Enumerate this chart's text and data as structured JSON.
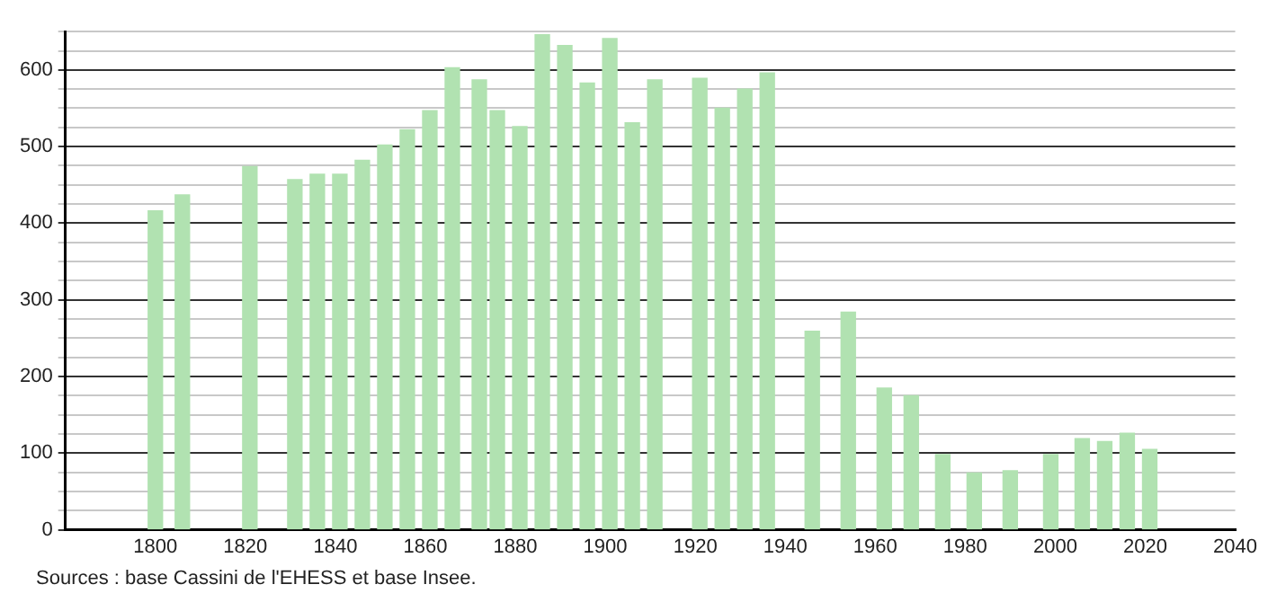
{
  "chart_data": {
    "type": "bar",
    "x": [
      1800,
      1806,
      1821,
      1831,
      1836,
      1841,
      1846,
      1851,
      1856,
      1861,
      1866,
      1872,
      1876,
      1881,
      1886,
      1891,
      1896,
      1901,
      1906,
      1911,
      1921,
      1926,
      1931,
      1936,
      1946,
      1954,
      1962,
      1968,
      1975,
      1982,
      1990,
      1999,
      2006,
      2011,
      2016,
      2021
    ],
    "values": [
      416,
      437,
      474,
      457,
      464,
      464,
      482,
      502,
      522,
      547,
      603,
      587,
      547,
      526,
      646,
      632,
      583,
      641,
      531,
      587,
      589,
      550,
      575,
      596,
      259,
      284,
      185,
      175,
      98,
      74,
      77,
      98,
      119,
      115,
      126,
      105
    ],
    "color": "#b1e2b1",
    "xlim": [
      1780,
      2040
    ],
    "xticks": [
      1800,
      1820,
      1840,
      1860,
      1880,
      1900,
      1920,
      1940,
      1960,
      1980,
      2000,
      2020,
      2040
    ],
    "ylim": [
      0,
      650
    ],
    "yticks": [
      0,
      {
        "value": 25,
        "label": null
      },
      {
        "value": 50,
        "label": null
      },
      {
        "value": 75,
        "label": null
      },
      100,
      {
        "value": 125,
        "label": null
      },
      {
        "value": 150,
        "label": null
      },
      {
        "value": 175,
        "label": null
      },
      200,
      {
        "value": 225,
        "label": null
      },
      {
        "value": 250,
        "label": null
      },
      {
        "value": 275,
        "label": null
      },
      300,
      {
        "value": 325,
        "label": null
      },
      {
        "value": 350,
        "label": null
      },
      {
        "value": 375,
        "label": null
      },
      400,
      {
        "value": 425,
        "label": null
      },
      {
        "value": 450,
        "label": null
      },
      {
        "value": 475,
        "label": null
      },
      500,
      {
        "value": 525,
        "label": null
      },
      {
        "value": 550,
        "label": null
      },
      {
        "value": 575,
        "label": null
      },
      600,
      {
        "value": 625,
        "label": null
      },
      {
        "value": 650,
        "label": null
      }
    ],
    "grid": "y",
    "legend": false,
    "annotations": [
      "Sources : base Cassini de l'EHESS et base Insee."
    ]
  }
}
